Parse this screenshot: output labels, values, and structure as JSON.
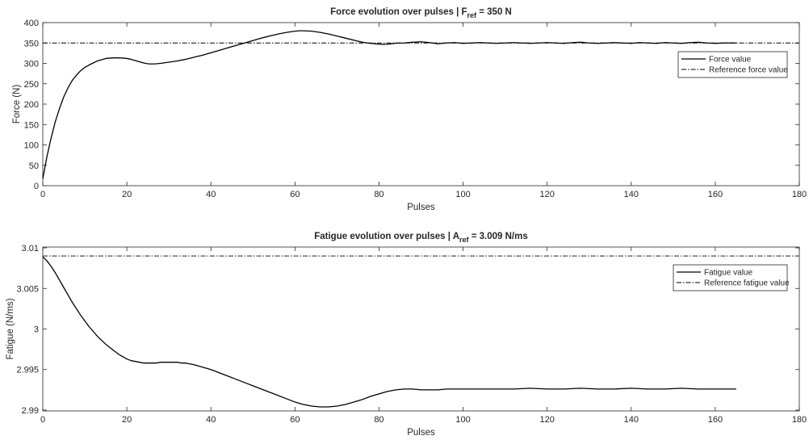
{
  "chart_data": [
    {
      "type": "line",
      "title": {
        "prefix": "Force evolution over pulses | F",
        "sub": "ref",
        "suffix": " = 350 N"
      },
      "xlabel": "Pulses",
      "ylabel": "Force (N)",
      "xlim": [
        0,
        180
      ],
      "ylim": [
        0,
        400
      ],
      "xticks": [
        0,
        20,
        40,
        60,
        80,
        100,
        120,
        140,
        160,
        180
      ],
      "yticks": [
        0,
        50,
        100,
        150,
        200,
        250,
        300,
        350,
        400
      ],
      "ytick_labels": [
        "0",
        "50",
        "100",
        "150",
        "200",
        "250",
        "300",
        "350",
        "400"
      ],
      "grid": false,
      "legend_position": "upper-right",
      "series": [
        {
          "name": "Force value",
          "style": "solid",
          "color": "#000000",
          "x": [
            0,
            1,
            2,
            3,
            4,
            5,
            6,
            7,
            8,
            9,
            10,
            11,
            12,
            13,
            14,
            15,
            16,
            17,
            18,
            19,
            20,
            21,
            22,
            23,
            24,
            25,
            26,
            27,
            28,
            29,
            30,
            32,
            34,
            36,
            38,
            40,
            42,
            44,
            46,
            48,
            50,
            52,
            54,
            56,
            58,
            60,
            61,
            62,
            64,
            66,
            68,
            70,
            72,
            74,
            76,
            78,
            80,
            81,
            82,
            83,
            84,
            86,
            88,
            90,
            92,
            94,
            96,
            98,
            100,
            102,
            104,
            106,
            108,
            110,
            112,
            114,
            116,
            118,
            120,
            122,
            124,
            126,
            128,
            130,
            132,
            134,
            136,
            138,
            140,
            142,
            144,
            146,
            148,
            150,
            152,
            154,
            156,
            158,
            160,
            162,
            165
          ],
          "y": [
            17,
            72,
            118,
            158,
            190,
            218,
            240,
            258,
            271,
            282,
            290,
            296,
            301,
            306,
            309,
            312,
            313,
            313.5,
            313.5,
            313,
            312,
            310,
            307,
            304,
            301,
            299,
            298.5,
            299,
            300,
            301.5,
            303,
            306,
            310,
            315,
            320,
            326,
            332,
            338,
            344,
            350,
            356,
            362,
            367,
            372,
            376,
            379,
            380,
            380,
            379,
            376,
            372,
            367,
            362,
            357,
            352,
            349,
            347,
            346.5,
            347,
            348,
            349.5,
            350,
            352,
            353,
            351,
            348,
            350,
            351,
            349,
            350,
            351,
            350,
            349,
            350,
            351,
            350,
            349,
            350,
            351,
            350,
            349,
            351,
            352,
            350,
            349,
            350,
            351,
            350,
            349,
            351,
            350,
            349,
            351,
            350,
            349,
            351,
            352,
            350,
            349,
            350,
            350
          ]
        },
        {
          "name": "Reference force value",
          "style": "dashdot",
          "color": "#000000",
          "x": [
            0,
            180
          ],
          "y": [
            350,
            350
          ]
        }
      ]
    },
    {
      "type": "line",
      "title": {
        "prefix": "Fatigue evolution over pulses | A",
        "sub": "ref",
        "suffix": " = 3.009 N/ms"
      },
      "xlabel": "Pulses",
      "ylabel": "Fatigue (N/ms)",
      "xlim": [
        0,
        180
      ],
      "ylim": [
        2.9899,
        3.0101
      ],
      "xticks": [
        0,
        20,
        40,
        60,
        80,
        100,
        120,
        140,
        160,
        180
      ],
      "yticks": [
        2.99,
        2.995,
        3.0,
        3.005,
        3.01
      ],
      "ytick_labels": [
        "2.99",
        "2.995",
        "3",
        "3.005",
        "3.01"
      ],
      "grid": false,
      "legend_position": "upper-right",
      "series": [
        {
          "name": "Fatigue value",
          "style": "solid",
          "color": "#000000",
          "x": [
            0,
            1,
            2,
            3,
            4,
            5,
            6,
            7,
            8,
            9,
            10,
            11,
            12,
            13,
            14,
            15,
            16,
            17,
            18,
            19,
            20,
            21,
            22,
            23,
            24,
            25,
            26,
            27,
            28,
            29,
            30,
            31,
            32,
            33,
            34,
            36,
            38,
            40,
            42,
            44,
            46,
            48,
            50,
            52,
            54,
            56,
            58,
            60,
            62,
            64,
            66,
            68,
            70,
            72,
            74,
            76,
            78,
            80,
            82,
            84,
            86,
            88,
            90,
            92,
            94,
            96,
            98,
            100,
            104,
            108,
            112,
            116,
            120,
            124,
            128,
            132,
            136,
            140,
            144,
            148,
            152,
            156,
            160,
            165
          ],
          "y": [
            3.0089,
            3.0084,
            3.0077,
            3.0069,
            3.006,
            3.0051,
            3.0042,
            3.0033,
            3.0025,
            3.0017,
            3.001,
            3.0003,
            2.9997,
            2.9991,
            2.9986,
            2.9981,
            2.9977,
            2.9973,
            2.9969,
            2.9966,
            2.9963,
            2.9961,
            2.996,
            2.9959,
            2.9958,
            2.9958,
            2.9958,
            2.9958,
            2.9959,
            2.9959,
            2.9959,
            2.9959,
            2.9959,
            2.9958,
            2.9958,
            2.9956,
            2.9953,
            2.995,
            2.9946,
            2.9942,
            2.9938,
            2.9934,
            2.993,
            2.9926,
            2.9922,
            2.9918,
            2.9914,
            2.991,
            2.9907,
            2.9905,
            2.9904,
            2.9904,
            2.9905,
            2.9907,
            2.991,
            2.9913,
            2.9917,
            2.992,
            2.9923,
            2.9925,
            2.9926,
            2.9926,
            2.9925,
            2.9925,
            2.9925,
            2.9926,
            2.9926,
            2.9926,
            2.9926,
            2.9926,
            2.9926,
            2.9927,
            2.9926,
            2.9926,
            2.9927,
            2.9926,
            2.9926,
            2.9927,
            2.9926,
            2.9926,
            2.9927,
            2.9926,
            2.9926,
            2.9926
          ]
        },
        {
          "name": "Reference fatigue value",
          "style": "dashdot",
          "color": "#000000",
          "x": [
            0,
            180
          ],
          "y": [
            3.009,
            3.009
          ]
        }
      ]
    }
  ]
}
